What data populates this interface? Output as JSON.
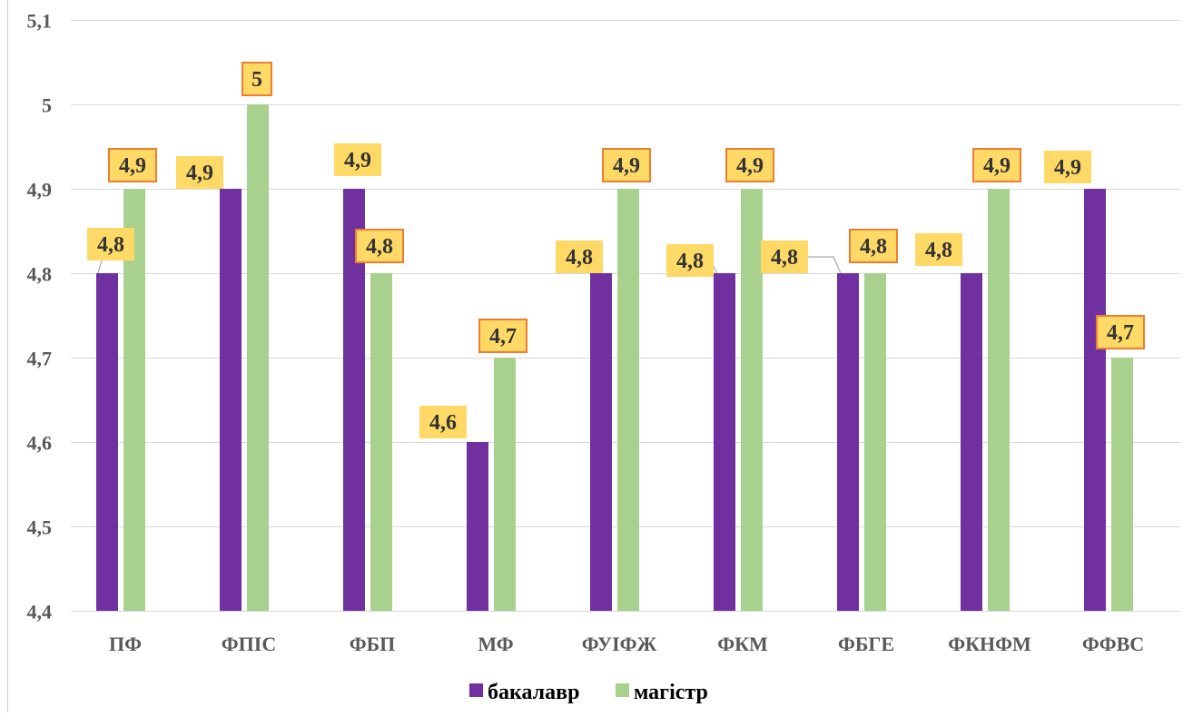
{
  "chart_data": {
    "type": "bar",
    "title": "",
    "xlabel": "",
    "ylabel": "",
    "ylim": [
      4.4,
      5.1
    ],
    "y_ticks": [
      "4,4",
      "4,5",
      "4,6",
      "4,7",
      "4,8",
      "4,9",
      "5",
      "5,1"
    ],
    "y_tick_values": [
      4.4,
      4.5,
      4.6,
      4.7,
      4.8,
      4.9,
      5.0,
      5.1
    ],
    "grid": true,
    "legend_position": "bottom",
    "categories": [
      "ПФ",
      "ФПІС",
      "ФБП",
      "МФ",
      "ФУІФЖ",
      "ФКМ",
      "ФБГЕ",
      "ФКНФМ",
      "ФФВС"
    ],
    "series": [
      {
        "name": "бакалавр",
        "color": "#7030a0",
        "values": [
          4.8,
          4.9,
          4.9,
          4.6,
          4.8,
          4.8,
          4.8,
          4.8,
          4.9
        ],
        "labels": [
          "4,8",
          "4,9",
          "4,9",
          "4,6",
          "4,8",
          "4,8",
          "4,8",
          "4,8",
          "4,9"
        ]
      },
      {
        "name": "магістр",
        "color": "#a9d18e",
        "values": [
          4.9,
          5.0,
          4.8,
          4.7,
          4.9,
          4.9,
          4.8,
          4.9,
          4.7
        ],
        "labels": [
          "4,9",
          "5",
          "4,8",
          "4,7",
          "4,9",
          "4,9",
          "4,8",
          "4,9",
          "4,7"
        ]
      }
    ],
    "data_label_style": {
      "fill": "#ffd966",
      "text_color": "#333333",
      "magistr_border": "#ed7d31"
    }
  }
}
